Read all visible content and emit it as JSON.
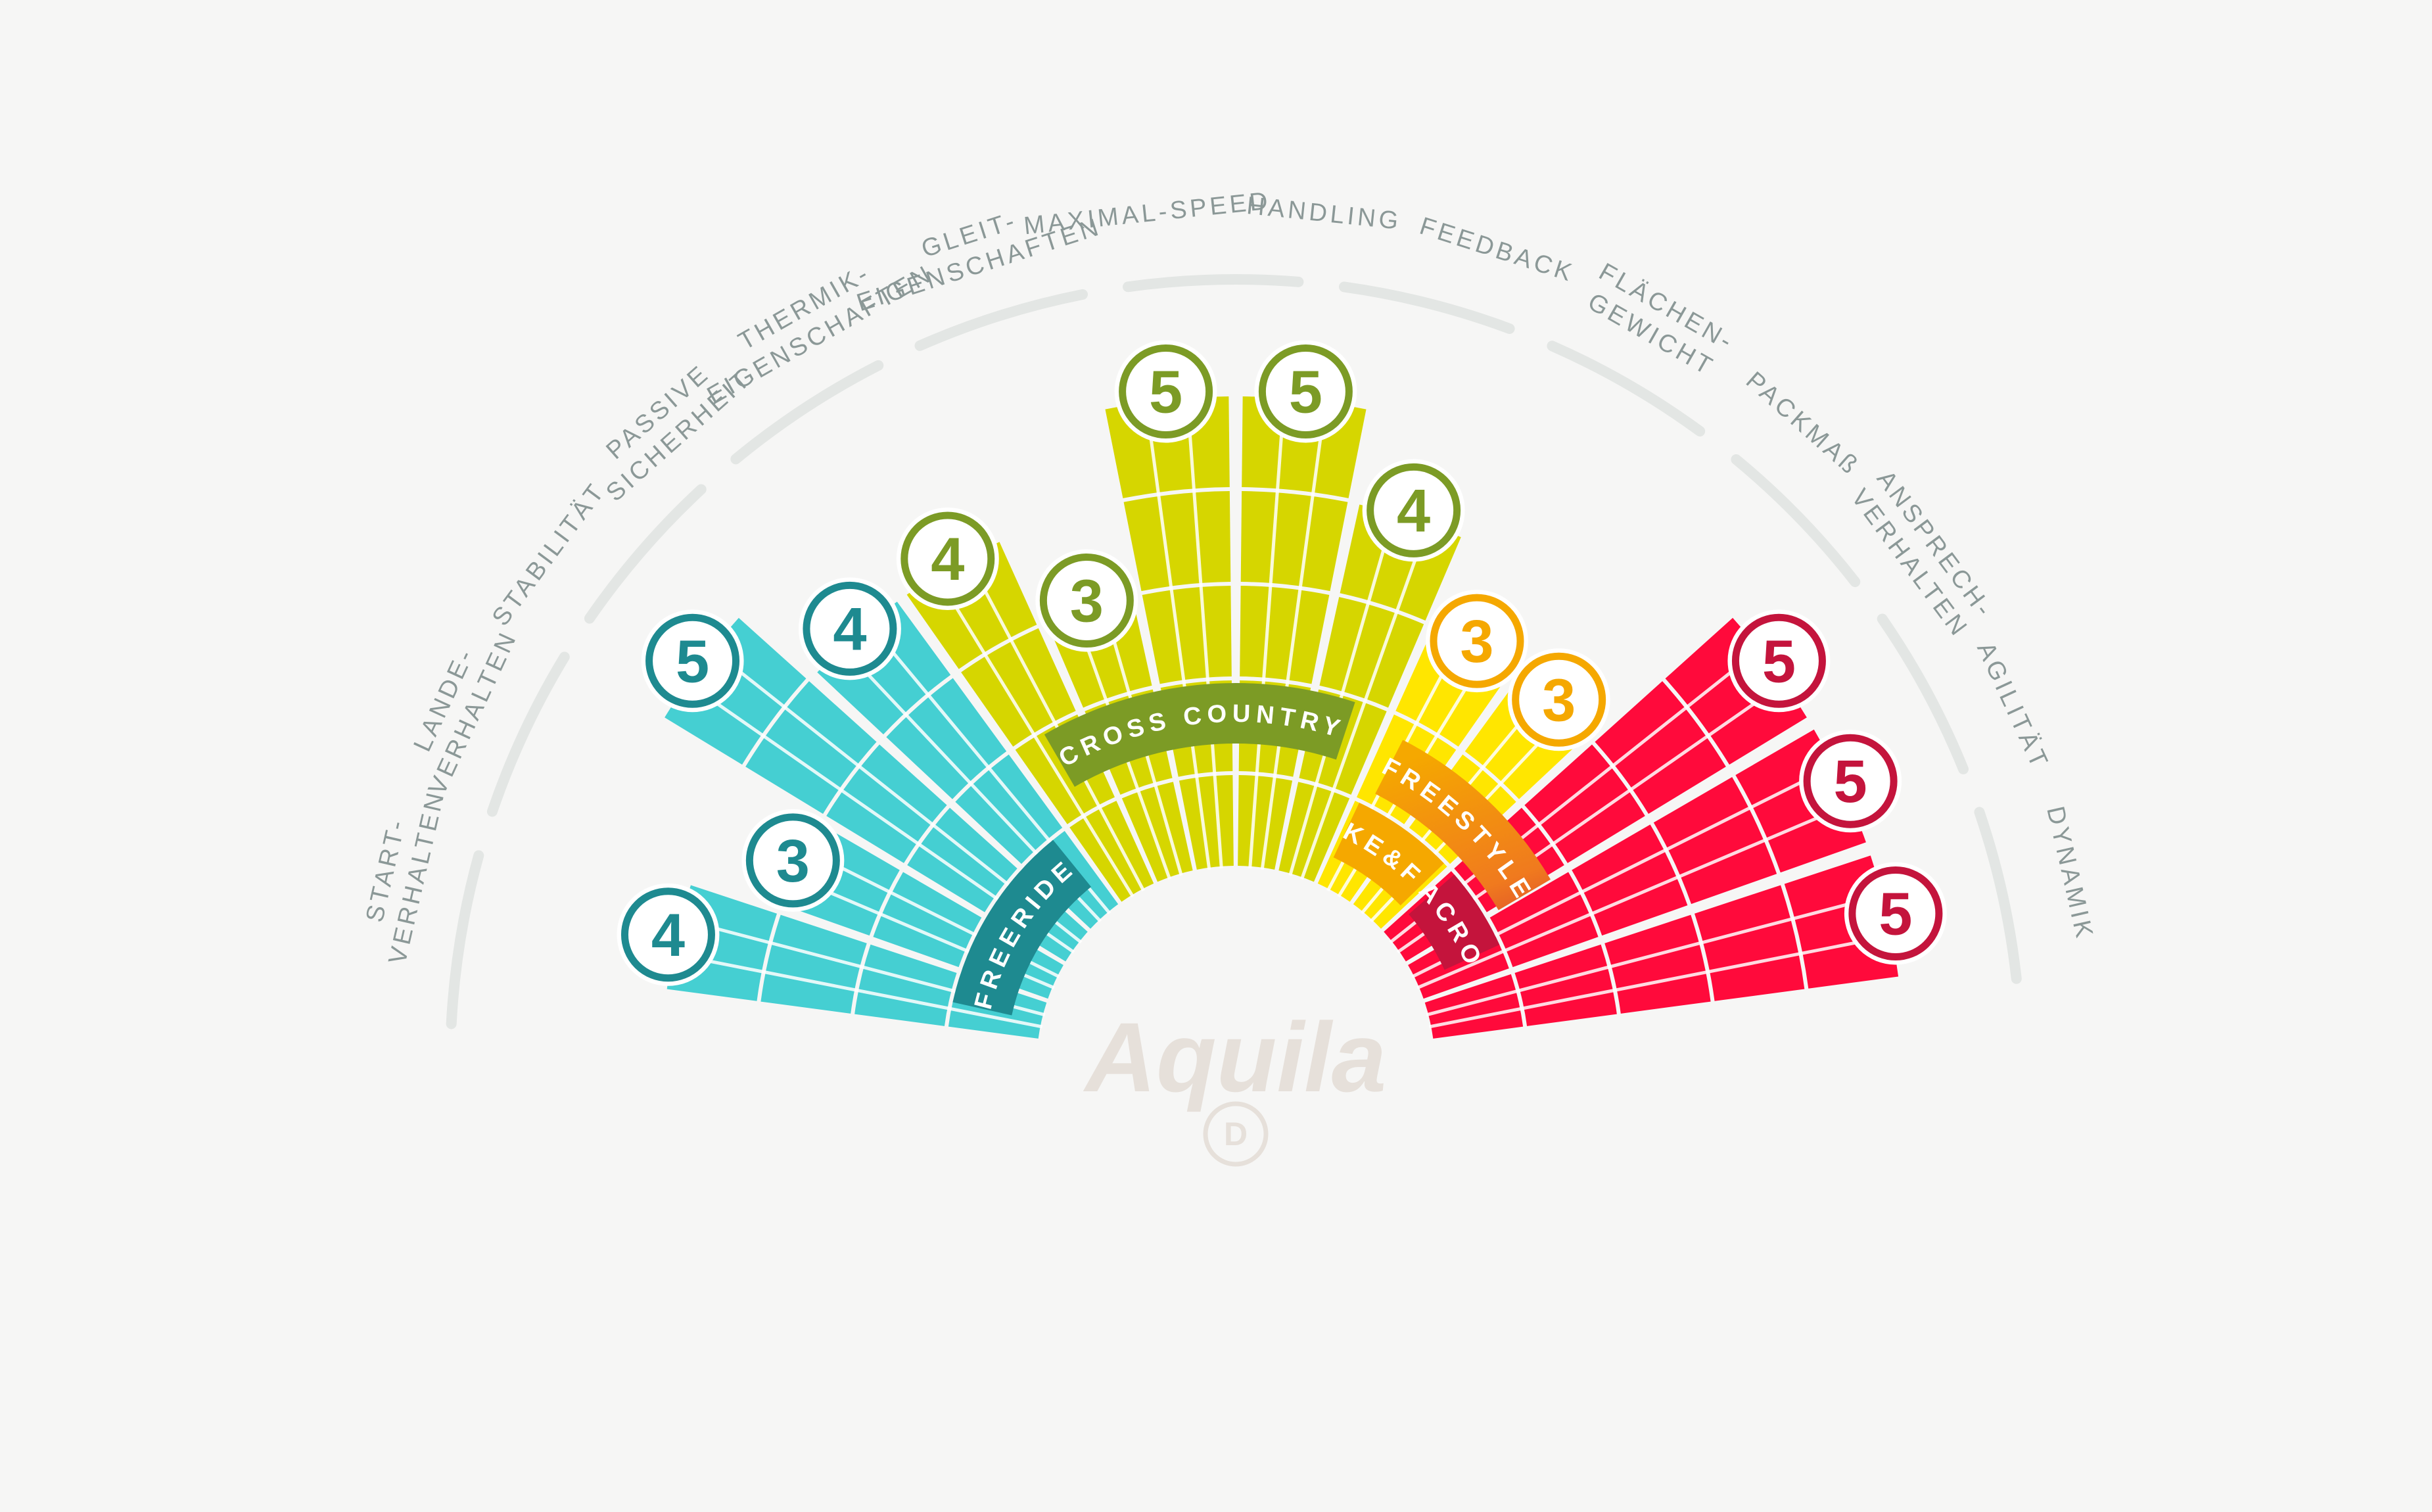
{
  "brand": {
    "logo_text": "Aquila",
    "logo_sub": "D"
  },
  "colors": {
    "freeride": "#45cfd2",
    "freeride_dark": "#1e8a90",
    "cross_country": "#d6d600",
    "cross_country_dark": "#7c9b25",
    "hike_fly": "#ffe600",
    "hike_fly_dark": "#f5a800",
    "acro": "#ff0a3b",
    "acro_dark": "#c4143c",
    "freestyle_dark": "#9e0f2f",
    "track": "#e3e6e4",
    "label": "#8b9897",
    "logo": "#e6e0da"
  },
  "chart_data": {
    "type": "radial-bar",
    "max_score": 5,
    "series": [
      {
        "name": "Start- verhalten",
        "lines": [
          "START-",
          "VERHALTEN"
        ],
        "value": 4,
        "category": "freeride"
      },
      {
        "name": "Lande- verhalten",
        "lines": [
          "LANDE-",
          "VERHALTEN"
        ],
        "value": 3,
        "category": "freeride"
      },
      {
        "name": "Stabilität",
        "lines": [
          "STABILITÄT"
        ],
        "value": 5,
        "category": "freeride"
      },
      {
        "name": "Passive Sicherheit",
        "lines": [
          "PASSIVE",
          "SICHERHEIT"
        ],
        "value": 4,
        "category": "freeride"
      },
      {
        "name": "Thermik- eigenschaften",
        "lines": [
          "THERMIK-",
          "EIGENSCHAFTEN"
        ],
        "value": 4,
        "category": "cross_country"
      },
      {
        "name": "Gleit- eigenschaften",
        "lines": [
          "GLEIT-",
          "EIGENSCHAFTEN"
        ],
        "value": 3,
        "category": "cross_country"
      },
      {
        "name": "Maximal-Speed",
        "lines": [
          "MAXIMAL-SPEED"
        ],
        "value": 5,
        "category": "cross_country"
      },
      {
        "name": "Handling",
        "lines": [
          "HANDLING"
        ],
        "value": 5,
        "category": "cross_country"
      },
      {
        "name": "Feedback",
        "lines": [
          "FEEDBACK"
        ],
        "value": 4,
        "category": "cross_country"
      },
      {
        "name": "Flächen- gewicht",
        "lines": [
          "FLÄCHEN-",
          "GEWICHT"
        ],
        "value": 3,
        "category": "hike_fly"
      },
      {
        "name": "Packmaß",
        "lines": [
          "PACKMAß"
        ],
        "value": 3,
        "category": "hike_fly"
      },
      {
        "name": "Ansprech- verhalten",
        "lines": [
          "ANSPRECH-",
          "VERHALTEN"
        ],
        "value": 5,
        "category": "acro"
      },
      {
        "name": "Agilität",
        "lines": [
          "AGILITÄT"
        ],
        "value": 5,
        "category": "acro"
      },
      {
        "name": "Dynamik",
        "lines": [
          "DYNAMIK"
        ],
        "value": 5,
        "category": "acro"
      }
    ],
    "groups": [
      {
        "name": "FREERIDE",
        "key": "freeride",
        "ring": "inner"
      },
      {
        "name": "CROSS COUNTRY",
        "key": "cross_country",
        "ring": "inner"
      },
      {
        "name": "HIKE&FLY",
        "key": "hike_fly",
        "ring": "inner"
      },
      {
        "name": "ACRO",
        "key": "acro",
        "ring": "inner"
      },
      {
        "name": "FREESTYLE",
        "key": "freestyle",
        "ring": "outer"
      }
    ]
  }
}
